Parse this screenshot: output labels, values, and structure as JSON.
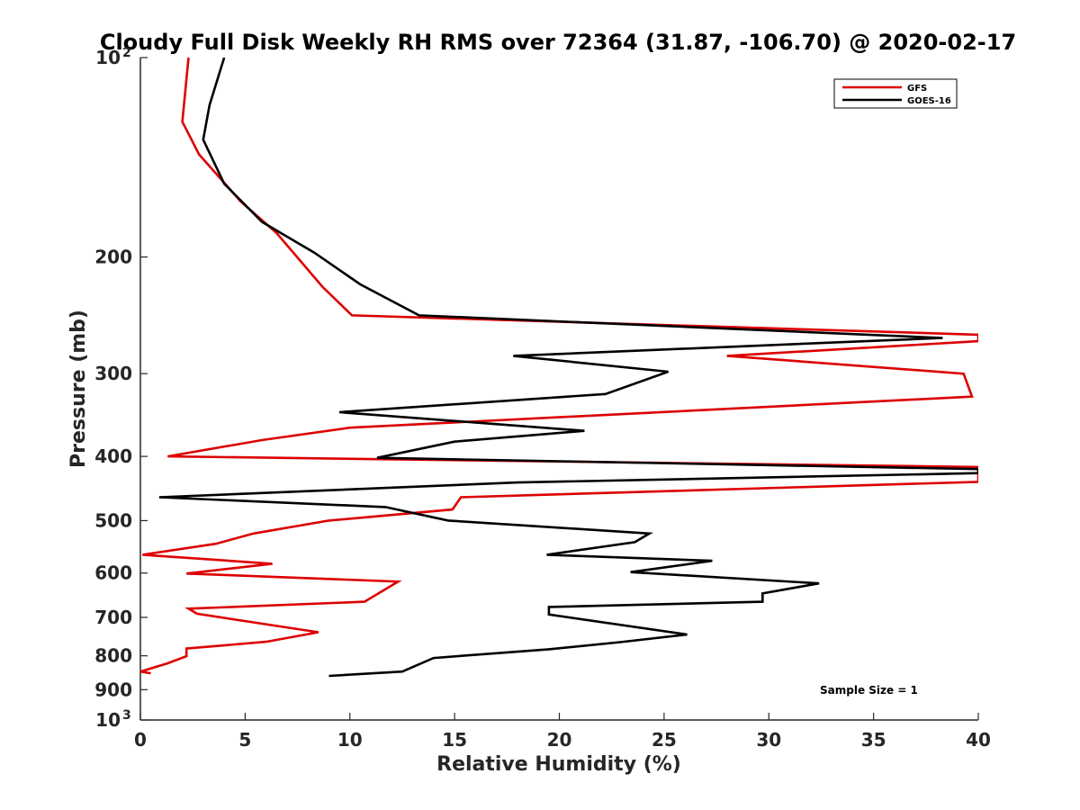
{
  "chart_data": {
    "type": "line",
    "title": "Cloudy Full Disk Weekly RH RMS over 72364 (31.87, -106.70) @ 2020-02-17",
    "xlabel": "Relative Humidity (%)",
    "ylabel": "Pressure (mb)",
    "xlim": [
      0,
      40
    ],
    "ylim": [
      100,
      1000
    ],
    "yscale": "log",
    "y_reversed": true,
    "grid": false,
    "legend_position": "top-right",
    "x_ticks": [
      {
        "value": 0,
        "label": "0"
      },
      {
        "value": 5,
        "label": "5"
      },
      {
        "value": 10,
        "label": "10"
      },
      {
        "value": 15,
        "label": "15"
      },
      {
        "value": 20,
        "label": "20"
      },
      {
        "value": 25,
        "label": "25"
      },
      {
        "value": 30,
        "label": "30"
      },
      {
        "value": 35,
        "label": "35"
      },
      {
        "value": 40,
        "label": "40"
      }
    ],
    "y_ticks": [
      {
        "value": 100,
        "label": "10",
        "sup": "2"
      },
      {
        "value": 200,
        "label": "200"
      },
      {
        "value": 300,
        "label": "300"
      },
      {
        "value": 400,
        "label": "400"
      },
      {
        "value": 500,
        "label": "500"
      },
      {
        "value": 600,
        "label": "600"
      },
      {
        "value": 700,
        "label": "700"
      },
      {
        "value": 800,
        "label": "800"
      },
      {
        "value": 900,
        "label": "900"
      },
      {
        "value": 1000,
        "label": "10",
        "sup": "3"
      }
    ],
    "annotation": "Sample Size = 1",
    "series": [
      {
        "name": "GFS",
        "color": "#dd0000",
        "points": [
          [
            2.3,
            100
          ],
          [
            2.0,
            125
          ],
          [
            2.8,
            140
          ],
          [
            4.8,
            165
          ],
          [
            6.5,
            184
          ],
          [
            8.7,
            222
          ],
          [
            10.1,
            245
          ],
          [
            40,
            262
          ],
          [
            40,
            268
          ],
          [
            28,
            282
          ],
          [
            39.3,
            300
          ],
          [
            39.7,
            325
          ],
          [
            10.0,
            362
          ],
          [
            5.8,
            378
          ],
          [
            1.3,
            400
          ],
          [
            40,
            415
          ],
          [
            40,
            437
          ],
          [
            15.3,
            461
          ],
          [
            14.9,
            481
          ],
          [
            9.0,
            500
          ],
          [
            5.4,
            523
          ],
          [
            3.6,
            542
          ],
          [
            0.1,
            563
          ],
          [
            6.3,
            581
          ],
          [
            2.2,
            601
          ],
          [
            12.3,
            618
          ],
          [
            10.7,
            663
          ],
          [
            2.3,
            679
          ],
          [
            2.7,
            691
          ],
          [
            8.5,
            737
          ],
          [
            6.0,
            762
          ],
          [
            2.2,
            780
          ],
          [
            2.2,
            801
          ],
          [
            1.3,
            821
          ],
          [
            0.0,
            845
          ],
          [
            0.5,
            850
          ]
        ]
      },
      {
        "name": "GOES-16",
        "color": "#000000",
        "points": [
          [
            4.0,
            100
          ],
          [
            3.3,
            118
          ],
          [
            3.0,
            133
          ],
          [
            4.0,
            155
          ],
          [
            5.8,
            177
          ],
          [
            8.3,
            197
          ],
          [
            10.5,
            220
          ],
          [
            13.3,
            245
          ],
          [
            38.3,
            265
          ],
          [
            17.8,
            282
          ],
          [
            25.2,
            298
          ],
          [
            22.2,
            322
          ],
          [
            9.5,
            343
          ],
          [
            21.2,
            366
          ],
          [
            15.0,
            380
          ],
          [
            11.3,
            402
          ],
          [
            40,
            418
          ],
          [
            40,
            424
          ],
          [
            18.0,
            438
          ],
          [
            0.9,
            461
          ],
          [
            11.7,
            477
          ],
          [
            14.7,
            500
          ],
          [
            24.3,
            523
          ],
          [
            23.6,
            539
          ],
          [
            19.4,
            563
          ],
          [
            27.3,
            575
          ],
          [
            23.4,
            598
          ],
          [
            32.4,
            622
          ],
          [
            29.7,
            644
          ],
          [
            29.7,
            663
          ],
          [
            19.5,
            675
          ],
          [
            19.5,
            693
          ],
          [
            26.1,
            743
          ],
          [
            22.9,
            763
          ],
          [
            19.5,
            782
          ],
          [
            14.0,
            806
          ],
          [
            12.5,
            845
          ],
          [
            9.0,
            858
          ]
        ]
      }
    ]
  }
}
